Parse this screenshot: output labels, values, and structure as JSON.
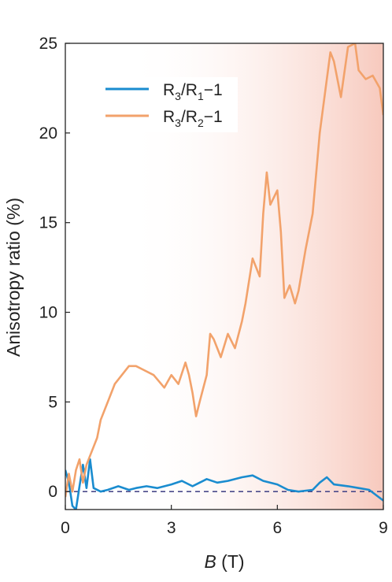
{
  "chart_data": {
    "type": "line",
    "xlabel": {
      "italic": "B",
      "unit": "(T)"
    },
    "ylabel": "Anisotropy ratio (%)",
    "xlim": [
      0,
      9
    ],
    "ylim": [
      -1,
      25
    ],
    "xticks": [
      0,
      3,
      6,
      9
    ],
    "yticks": [
      0,
      5,
      10,
      15,
      20,
      25
    ],
    "xtick_labels": [
      "0",
      "3",
      "6",
      "9"
    ],
    "ytick_labels": [
      "0",
      "5",
      "10",
      "15",
      "20",
      "25"
    ],
    "grid": false,
    "legend_position": "top-left",
    "reference_line": {
      "y": 0,
      "style": "dashed",
      "color": "#4a4a8a"
    },
    "background_gradient": {
      "from_x": 1.7,
      "to_x": 9,
      "color": "#f7c9bd"
    },
    "series": [
      {
        "name": {
          "base": "R",
          "sub1": "3",
          "mid": "/R",
          "sub2": "1",
          "tail": "−1"
        },
        "color": "#1a8ccf",
        "x": [
          0.0,
          0.1,
          0.2,
          0.3,
          0.4,
          0.5,
          0.6,
          0.7,
          0.8,
          1.0,
          1.2,
          1.5,
          1.8,
          2.0,
          2.3,
          2.6,
          3.0,
          3.3,
          3.6,
          4.0,
          4.3,
          4.6,
          5.0,
          5.3,
          5.6,
          6.0,
          6.3,
          6.6,
          7.0,
          7.2,
          7.4,
          7.6,
          8.0,
          8.3,
          8.6,
          9.0
        ],
        "y": [
          1.2,
          0.5,
          -0.8,
          -1.0,
          0.3,
          1.5,
          0.2,
          1.8,
          0.2,
          0.0,
          0.1,
          0.3,
          0.1,
          0.2,
          0.3,
          0.2,
          0.4,
          0.6,
          0.3,
          0.7,
          0.5,
          0.6,
          0.8,
          0.9,
          0.6,
          0.4,
          0.1,
          0.0,
          0.1,
          0.5,
          0.8,
          0.4,
          0.3,
          0.2,
          0.1,
          -0.5
        ]
      },
      {
        "name": {
          "base": "R",
          "sub1": "3",
          "mid": "/R",
          "sub2": "2",
          "tail": "−1"
        },
        "color": "#f2a26b",
        "x": [
          0.0,
          0.1,
          0.2,
          0.3,
          0.4,
          0.5,
          0.6,
          0.7,
          0.8,
          0.9,
          1.0,
          1.2,
          1.4,
          1.6,
          1.8,
          2.0,
          2.2,
          2.5,
          2.8,
          3.0,
          3.2,
          3.4,
          3.5,
          3.6,
          3.7,
          3.8,
          4.0,
          4.1,
          4.2,
          4.4,
          4.6,
          4.8,
          5.0,
          5.1,
          5.3,
          5.5,
          5.6,
          5.7,
          5.8,
          6.0,
          6.1,
          6.2,
          6.35,
          6.5,
          6.6,
          6.8,
          7.0,
          7.2,
          7.3,
          7.5,
          7.6,
          7.8,
          8.0,
          8.2,
          8.3,
          8.5,
          8.7,
          8.9,
          9.0
        ],
        "y": [
          -0.3,
          1.0,
          0.0,
          1.2,
          1.8,
          0.5,
          1.5,
          2.0,
          2.5,
          3.0,
          4.0,
          5.0,
          6.0,
          6.5,
          7.0,
          7.0,
          6.8,
          6.5,
          5.8,
          6.5,
          6.0,
          7.2,
          6.5,
          5.5,
          4.2,
          5.0,
          6.5,
          8.8,
          8.5,
          7.5,
          8.8,
          8.0,
          9.5,
          10.5,
          13.0,
          12.0,
          15.5,
          17.8,
          16.0,
          16.8,
          14.5,
          10.8,
          11.5,
          10.5,
          11.2,
          13.5,
          15.5,
          20.0,
          21.5,
          24.5,
          24.0,
          22.0,
          24.8,
          25.0,
          23.5,
          23.0,
          23.2,
          22.5,
          21.0
        ]
      }
    ]
  }
}
